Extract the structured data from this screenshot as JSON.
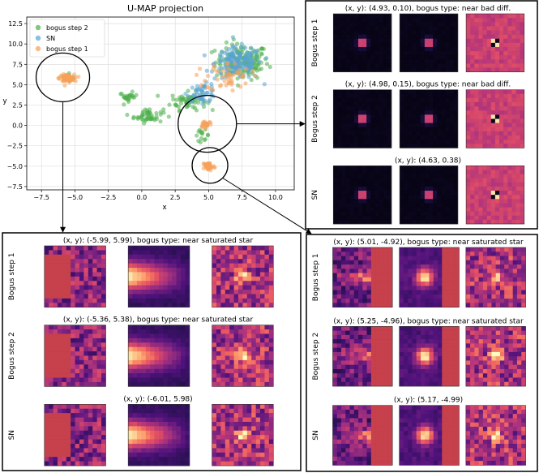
{
  "chart_data": {
    "type": "scatter",
    "title": "U-MAP projection",
    "xlabel": "x",
    "ylabel": "y",
    "xlim": [
      -8.6,
      11.4
    ],
    "ylim": [
      -7.9,
      13.3
    ],
    "xticks": [
      "−7.5",
      "−5.0",
      "−2.5",
      "0.0",
      "2.5",
      "5.0",
      "7.5",
      "10.0"
    ],
    "yticks": [
      "−7.5",
      "−5.0",
      "−2.5",
      "0.0",
      "2.5",
      "5.0",
      "7.5",
      "10.0",
      "12.5"
    ],
    "grid": true,
    "legend_position": "top-left",
    "series": [
      {
        "name": "bogus step 2",
        "color": "#4daf4a",
        "clusters": [
          {
            "cx": 7.5,
            "cy": 7.8,
            "sx": 1.8,
            "sy": 2.0,
            "n": 150
          },
          {
            "cx": 3.5,
            "cy": 3.0,
            "sx": 1.2,
            "sy": 1.0,
            "n": 60
          },
          {
            "cx": 0.5,
            "cy": 1.2,
            "sx": 1.0,
            "sy": 0.8,
            "n": 50
          },
          {
            "cx": -1.0,
            "cy": 3.5,
            "sx": 0.6,
            "sy": 0.5,
            "n": 25
          },
          {
            "cx": 4.5,
            "cy": -1.2,
            "sx": 0.5,
            "sy": 0.6,
            "n": 15
          },
          {
            "cx": -5.5,
            "cy": 5.9,
            "sx": 0.4,
            "sy": 0.4,
            "n": 12
          }
        ]
      },
      {
        "name": "SN",
        "color": "#5aa4d4",
        "clusters": [
          {
            "cx": 7.2,
            "cy": 7.6,
            "sx": 1.6,
            "sy": 1.8,
            "n": 160
          },
          {
            "cx": 4.5,
            "cy": 4.0,
            "sx": 1.0,
            "sy": 1.0,
            "n": 50
          }
        ]
      },
      {
        "name": "bogus step 1",
        "color": "#f5a05a",
        "clusters": [
          {
            "cx": -5.6,
            "cy": 5.8,
            "sx": 0.5,
            "sy": 0.4,
            "n": 80
          },
          {
            "cx": 5.0,
            "cy": -5.0,
            "sx": 0.4,
            "sy": 0.5,
            "n": 45
          },
          {
            "cx": 4.8,
            "cy": 0.2,
            "sx": 0.4,
            "sy": 0.4,
            "n": 25
          },
          {
            "cx": 6.5,
            "cy": 6.0,
            "sx": 1.5,
            "sy": 1.6,
            "n": 50
          }
        ]
      }
    ],
    "highlight_regions": [
      {
        "cx": -5.9,
        "cy": 5.9
      },
      {
        "cx": 4.9,
        "cy": 0.2
      },
      {
        "cx": 5.1,
        "cy": -4.9
      }
    ]
  },
  "panels": [
    {
      "rows": [
        {
          "caption": "(x, y): (4.93, 0.10), bogus type: near bad diff.",
          "label": "Bogus step 1"
        },
        {
          "caption": "(x, y): (4.98, 0.15), bogus type: near bad diff.",
          "label": "Bogus step 2"
        },
        {
          "caption": "(x, y): (4.63, 0.38)",
          "label": "SN"
        }
      ]
    },
    {
      "rows": [
        {
          "caption": "(x, y): (-5.99, 5.99), bogus type: near saturated star",
          "label": "Bogus step 1"
        },
        {
          "caption": "(x, y): (-5.36, 5.38), bogus type: near saturated star",
          "label": "Bogus step 2"
        },
        {
          "caption": "(x, y): (-6.01, 5.98)",
          "label": "SN"
        }
      ]
    },
    {
      "rows": [
        {
          "caption": "(x, y): (5.01, -4.92), bogus type: near saturated star",
          "label": "Bogus step 1"
        },
        {
          "caption": "(x, y): (5.25, -4.96), bogus type: near saturated star",
          "label": "Bogus step 2"
        },
        {
          "caption": "(x, y): (5.17, -4.99)",
          "label": "SN"
        }
      ]
    }
  ]
}
